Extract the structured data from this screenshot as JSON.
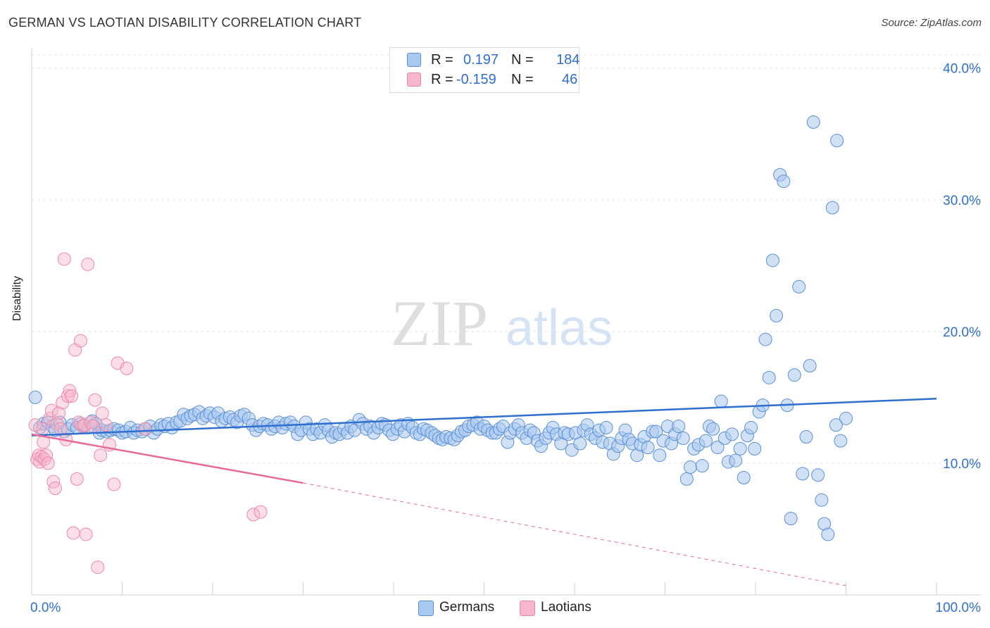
{
  "title": "GERMAN VS LAOTIAN DISABILITY CORRELATION CHART",
  "source": "Source: ZipAtlas.com",
  "watermark": {
    "zip": "ZIP",
    "atlas": "atlas"
  },
  "stats": {
    "r_label": "R =",
    "n_label": "N =",
    "german": {
      "r": "0.197",
      "n": "184"
    },
    "laotian": {
      "r": "-0.159",
      "n": "46"
    }
  },
  "colors": {
    "german_fill": "#a9c8ef",
    "german_stroke": "#5b90d8",
    "german_line": "#2f6fd0",
    "laotian_fill": "#f7b6c9",
    "laotian_stroke": "#ee88a8",
    "laotian_line": "#e8699a",
    "tick_text": "#2f6fd0"
  },
  "chart_data": {
    "type": "scatter",
    "title": "GERMAN VS LAOTIAN DISABILITY CORRELATION CHART",
    "xlabel": "",
    "ylabel": "Disability",
    "xlim": [
      0,
      100
    ],
    "ylim": [
      0,
      41
    ],
    "x_tick_labels": [
      "0.0%",
      "100.0%"
    ],
    "y_ticks": [
      10,
      20,
      30,
      40
    ],
    "y_tick_labels": [
      "10.0%",
      "20.0%",
      "30.0%",
      "40.0%"
    ],
    "grid": true,
    "legend": "bottom-center",
    "series": [
      {
        "name": "Germans",
        "trend": {
          "x": [
            0,
            100
          ],
          "y": [
            12.1,
            14.9
          ]
        },
        "points": [
          [
            0.4,
            15.0
          ],
          [
            0.9,
            12.7
          ],
          [
            1.3,
            13.0
          ],
          [
            1.8,
            13.1
          ],
          [
            2.3,
            12.8
          ],
          [
            2.6,
            12.5
          ],
          [
            3.1,
            13.1
          ],
          [
            3.6,
            12.4
          ],
          [
            4.0,
            12.6
          ],
          [
            4.5,
            12.9
          ],
          [
            5.0,
            12.7
          ],
          [
            5.4,
            13.0
          ],
          [
            5.8,
            12.8
          ],
          [
            6.2,
            12.7
          ],
          [
            6.7,
            13.2
          ],
          [
            7.1,
            13.0
          ],
          [
            7.5,
            12.3
          ],
          [
            7.8,
            12.5
          ],
          [
            8.3,
            12.4
          ],
          [
            8.7,
            12.5
          ],
          [
            9.1,
            12.6
          ],
          [
            9.6,
            12.5
          ],
          [
            10.0,
            12.3
          ],
          [
            10.4,
            12.4
          ],
          [
            10.9,
            12.7
          ],
          [
            11.3,
            12.3
          ],
          [
            11.7,
            12.5
          ],
          [
            12.2,
            12.4
          ],
          [
            12.6,
            12.6
          ],
          [
            13.1,
            12.8
          ],
          [
            13.5,
            12.3
          ],
          [
            13.9,
            12.6
          ],
          [
            14.3,
            12.9
          ],
          [
            14.7,
            12.8
          ],
          [
            15.1,
            13.0
          ],
          [
            15.5,
            12.7
          ],
          [
            16.0,
            13.1
          ],
          [
            16.4,
            13.2
          ],
          [
            16.8,
            13.7
          ],
          [
            17.2,
            13.4
          ],
          [
            17.6,
            13.6
          ],
          [
            18.0,
            13.7
          ],
          [
            18.5,
            13.9
          ],
          [
            18.9,
            13.4
          ],
          [
            19.3,
            13.6
          ],
          [
            19.7,
            13.8
          ],
          [
            20.2,
            13.5
          ],
          [
            20.6,
            13.8
          ],
          [
            21.0,
            13.2
          ],
          [
            21.4,
            13.4
          ],
          [
            21.9,
            13.5
          ],
          [
            22.3,
            13.3
          ],
          [
            22.7,
            13.1
          ],
          [
            23.1,
            13.6
          ],
          [
            23.5,
            13.7
          ],
          [
            24.0,
            13.4
          ],
          [
            24.4,
            12.9
          ],
          [
            24.8,
            12.5
          ],
          [
            25.2,
            12.8
          ],
          [
            25.6,
            13.0
          ],
          [
            26.1,
            12.9
          ],
          [
            26.5,
            12.6
          ],
          [
            26.9,
            12.8
          ],
          [
            27.3,
            13.1
          ],
          [
            27.7,
            12.7
          ],
          [
            28.1,
            13.0
          ],
          [
            28.6,
            13.1
          ],
          [
            29.0,
            12.8
          ],
          [
            29.4,
            12.2
          ],
          [
            29.8,
            12.5
          ],
          [
            30.3,
            13.1
          ],
          [
            30.7,
            12.6
          ],
          [
            31.1,
            12.2
          ],
          [
            31.5,
            12.6
          ],
          [
            31.9,
            12.3
          ],
          [
            32.4,
            12.9
          ],
          [
            32.8,
            12.5
          ],
          [
            33.2,
            12.0
          ],
          [
            33.6,
            12.3
          ],
          [
            34.0,
            12.2
          ],
          [
            34.5,
            12.6
          ],
          [
            34.9,
            12.3
          ],
          [
            35.3,
            12.8
          ],
          [
            35.7,
            12.5
          ],
          [
            36.2,
            13.3
          ],
          [
            36.6,
            13.0
          ],
          [
            37.0,
            12.6
          ],
          [
            37.4,
            12.8
          ],
          [
            37.8,
            12.3
          ],
          [
            38.3,
            12.7
          ],
          [
            38.7,
            13.0
          ],
          [
            39.1,
            12.9
          ],
          [
            39.5,
            12.5
          ],
          [
            39.9,
            12.2
          ],
          [
            40.4,
            12.6
          ],
          [
            40.8,
            12.9
          ],
          [
            41.2,
            12.4
          ],
          [
            41.6,
            13.0
          ],
          [
            42.1,
            12.7
          ],
          [
            42.5,
            12.3
          ],
          [
            42.9,
            12.2
          ],
          [
            43.3,
            12.6
          ],
          [
            43.7,
            12.5
          ],
          [
            44.2,
            12.3
          ],
          [
            44.6,
            12.1
          ],
          [
            45.0,
            11.9
          ],
          [
            45.4,
            11.8
          ],
          [
            45.8,
            12.0
          ],
          [
            46.3,
            11.9
          ],
          [
            46.7,
            11.8
          ],
          [
            47.1,
            12.1
          ],
          [
            47.5,
            12.4
          ],
          [
            47.9,
            12.5
          ],
          [
            48.3,
            12.8
          ],
          [
            48.8,
            12.9
          ],
          [
            49.2,
            13.1
          ],
          [
            49.6,
            12.6
          ],
          [
            50.0,
            12.8
          ],
          [
            50.4,
            12.5
          ],
          [
            50.9,
            12.3
          ],
          [
            51.3,
            12.3
          ],
          [
            51.7,
            12.6
          ],
          [
            52.1,
            12.8
          ],
          [
            52.6,
            11.6
          ],
          [
            52.9,
            12.3
          ],
          [
            53.4,
            12.6
          ],
          [
            53.8,
            12.9
          ],
          [
            54.2,
            12.3
          ],
          [
            54.7,
            11.9
          ],
          [
            55.1,
            12.5
          ],
          [
            55.5,
            12.3
          ],
          [
            55.9,
            11.7
          ],
          [
            56.3,
            11.3
          ],
          [
            56.8,
            11.9
          ],
          [
            57.2,
            12.3
          ],
          [
            57.6,
            12.7
          ],
          [
            58.0,
            12.2
          ],
          [
            58.5,
            11.5
          ],
          [
            58.9,
            12.3
          ],
          [
            59.3,
            12.2
          ],
          [
            59.7,
            11.0
          ],
          [
            60.1,
            12.3
          ],
          [
            60.6,
            11.5
          ],
          [
            61.0,
            12.5
          ],
          [
            61.4,
            12.9
          ],
          [
            61.8,
            12.2
          ],
          [
            62.3,
            11.9
          ],
          [
            62.7,
            12.5
          ],
          [
            63.1,
            11.6
          ],
          [
            63.5,
            12.7
          ],
          [
            63.9,
            11.5
          ],
          [
            64.3,
            10.7
          ],
          [
            64.8,
            11.3
          ],
          [
            65.2,
            11.9
          ],
          [
            65.6,
            12.5
          ],
          [
            66.0,
            11.8
          ],
          [
            66.4,
            11.5
          ],
          [
            66.9,
            10.6
          ],
          [
            67.3,
            11.4
          ],
          [
            67.7,
            12.0
          ],
          [
            68.1,
            11.2
          ],
          [
            68.6,
            12.4
          ],
          [
            69.0,
            12.4
          ],
          [
            69.4,
            10.6
          ],
          [
            69.8,
            11.7
          ],
          [
            70.3,
            12.8
          ],
          [
            70.7,
            11.5
          ],
          [
            71.1,
            12.2
          ],
          [
            71.5,
            12.8
          ],
          [
            72.0,
            11.9
          ],
          [
            72.4,
            8.8
          ],
          [
            72.8,
            9.7
          ],
          [
            73.2,
            11.1
          ],
          [
            73.7,
            11.4
          ],
          [
            74.1,
            9.8
          ],
          [
            74.5,
            11.7
          ],
          [
            74.9,
            12.8
          ],
          [
            75.3,
            12.6
          ],
          [
            75.8,
            11.2
          ],
          [
            76.2,
            14.7
          ],
          [
            76.6,
            11.9
          ],
          [
            77.0,
            10.1
          ],
          [
            77.4,
            12.2
          ],
          [
            77.8,
            10.2
          ],
          [
            78.3,
            11.1
          ],
          [
            78.7,
            8.9
          ],
          [
            79.1,
            12.1
          ],
          [
            79.5,
            12.7
          ],
          [
            79.9,
            11.1
          ],
          [
            80.4,
            13.9
          ],
          [
            80.8,
            14.4
          ],
          [
            81.1,
            19.4
          ],
          [
            81.5,
            16.5
          ],
          [
            81.9,
            25.4
          ],
          [
            82.3,
            21.2
          ],
          [
            82.7,
            31.9
          ],
          [
            83.1,
            31.4
          ],
          [
            83.5,
            14.4
          ],
          [
            83.9,
            5.8
          ],
          [
            84.3,
            16.7
          ],
          [
            84.8,
            23.4
          ],
          [
            85.2,
            9.2
          ],
          [
            85.6,
            12.0
          ],
          [
            86.0,
            17.4
          ],
          [
            86.4,
            35.9
          ],
          [
            86.9,
            9.1
          ],
          [
            87.3,
            7.2
          ],
          [
            87.6,
            5.4
          ],
          [
            88.0,
            4.6
          ],
          [
            88.5,
            29.4
          ],
          [
            89.0,
            34.5
          ],
          [
            89.4,
            11.7
          ],
          [
            90.0,
            13.4
          ],
          [
            88.9,
            12.9
          ]
        ]
      },
      {
        "name": "Laotians",
        "trend": {
          "x": [
            0,
            30
          ],
          "y": [
            12.2,
            8.5
          ]
        },
        "trend_dashed": {
          "x": [
            30,
            90
          ],
          "y": [
            8.5,
            0.7
          ]
        },
        "points": [
          [
            0.6,
            10.3
          ],
          [
            0.8,
            10.6
          ],
          [
            0.9,
            10.1
          ],
          [
            1.1,
            10.5
          ],
          [
            1.3,
            11.6
          ],
          [
            1.4,
            10.3
          ],
          [
            1.6,
            10.6
          ],
          [
            1.8,
            10.0
          ],
          [
            2.0,
            13.4
          ],
          [
            2.2,
            14.0
          ],
          [
            2.4,
            8.6
          ],
          [
            2.6,
            8.1
          ],
          [
            2.8,
            13.0
          ],
          [
            3.0,
            13.8
          ],
          [
            3.2,
            12.6
          ],
          [
            3.4,
            14.6
          ],
          [
            3.6,
            25.5
          ],
          [
            3.8,
            11.8
          ],
          [
            4.0,
            15.1
          ],
          [
            4.2,
            15.5
          ],
          [
            4.4,
            15.1
          ],
          [
            4.6,
            4.7
          ],
          [
            4.8,
            18.6
          ],
          [
            5.0,
            8.8
          ],
          [
            5.2,
            13.1
          ],
          [
            5.4,
            19.3
          ],
          [
            5.6,
            12.8
          ],
          [
            5.8,
            12.9
          ],
          [
            6.0,
            4.6
          ],
          [
            6.2,
            25.1
          ],
          [
            6.5,
            13.1
          ],
          [
            6.8,
            12.8
          ],
          [
            7.0,
            14.8
          ],
          [
            7.3,
            2.1
          ],
          [
            7.6,
            10.6
          ],
          [
            7.8,
            13.8
          ],
          [
            8.2,
            12.9
          ],
          [
            8.6,
            11.4
          ],
          [
            9.1,
            8.4
          ],
          [
            9.5,
            17.6
          ],
          [
            10.5,
            17.2
          ],
          [
            12.5,
            12.6
          ],
          [
            24.5,
            6.1
          ],
          [
            25.3,
            6.3
          ],
          [
            1.2,
            12.6
          ],
          [
            0.4,
            12.9
          ]
        ]
      }
    ]
  },
  "legend": {
    "items": [
      "Germans",
      "Laotians"
    ]
  }
}
